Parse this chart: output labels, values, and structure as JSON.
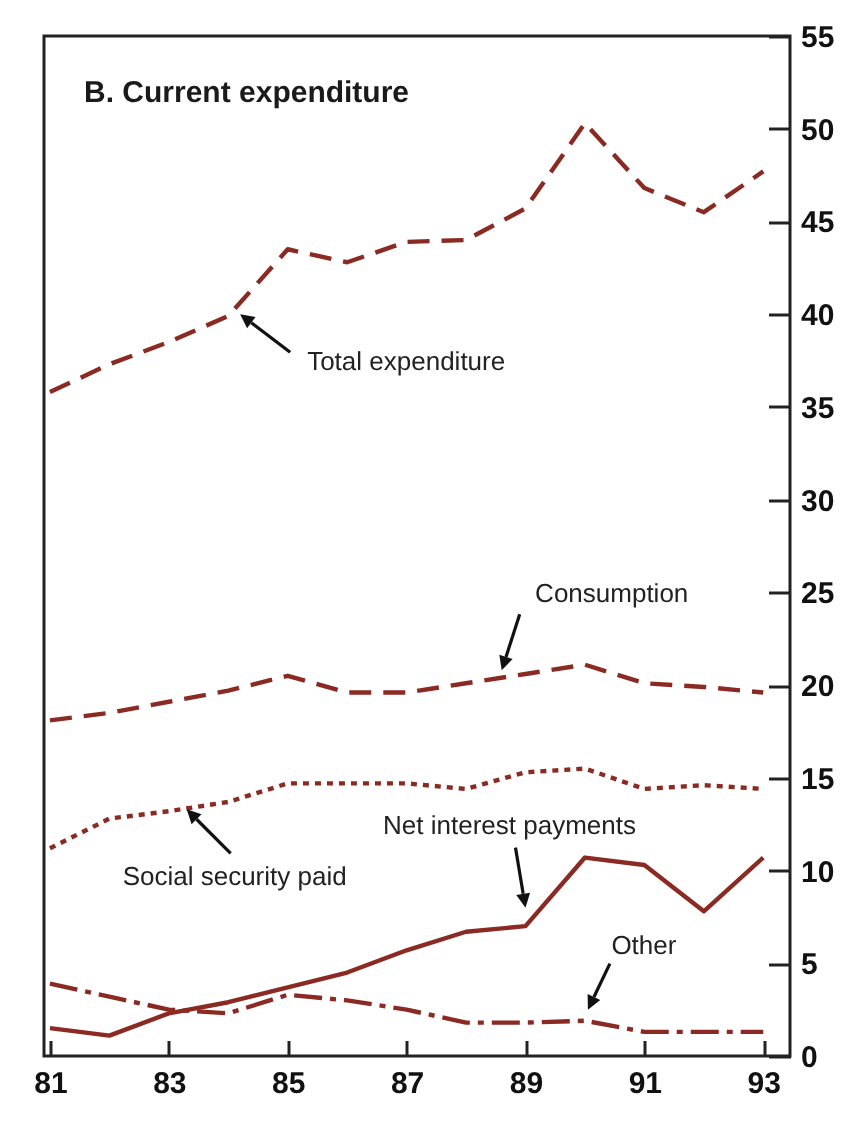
{
  "chart_data": {
    "type": "line",
    "title": "B.   Current expenditure",
    "x": [
      81,
      82,
      83,
      84,
      85,
      86,
      87,
      88,
      89,
      90,
      91,
      92,
      93
    ],
    "series": [
      {
        "color": "#8b2a22",
        "line_style": "dashed",
        "values": [
          35.8,
          37.3,
          38.5,
          39.9,
          43.5,
          42.8,
          43.9,
          44.0,
          45.7,
          50.3,
          46.8,
          45.5,
          47.7
        ]
      },
      {
        "color": "#8b2a22",
        "line_style": "dashed",
        "values": [
          18.1,
          18.5,
          19.1,
          19.7,
          20.5,
          19.6,
          19.6,
          20.1,
          20.6,
          21.1,
          20.1,
          19.9,
          19.6
        ]
      },
      {
        "color": "#8b2a22",
        "line_style": "dotted",
        "values": [
          11.2,
          12.8,
          13.2,
          13.7,
          14.7,
          14.7,
          14.7,
          14.4,
          15.3,
          15.5,
          14.4,
          14.6,
          14.4
        ]
      },
      {
        "color": "#8b2a22",
        "line_style": "solid",
        "values": [
          1.5,
          1.1,
          2.3,
          2.9,
          3.7,
          4.5,
          5.7,
          6.7,
          7.0,
          10.7,
          10.3,
          7.8,
          10.7
        ]
      },
      {
        "color": "#8b2a22",
        "line_style": "dashdot",
        "values": [
          3.9,
          3.2,
          2.5,
          2.3,
          3.3,
          3.0,
          2.5,
          1.8,
          1.8,
          1.9,
          1.3,
          1.3,
          1.3
        ]
      }
    ],
    "annotations": [
      {
        "text": "Total expenditure",
        "x": 84.2,
        "y": 40.0
      },
      {
        "text": "Consumption",
        "x": 88.6,
        "y": 20.8
      },
      {
        "text": "Social security paid",
        "x": 83.3,
        "y": 13.3
      },
      {
        "text": "Net interest payments",
        "x": 89.0,
        "y": 8.0
      },
      {
        "text": "Other",
        "x": 90.05,
        "y": 2.5
      }
    ],
    "xlim": [
      80.9,
      93.45
    ],
    "xticks": [
      81,
      83,
      85,
      87,
      89,
      91,
      93
    ],
    "ylim": [
      0,
      55
    ],
    "yticks": [
      0,
      5,
      10,
      15,
      20,
      25,
      30,
      35,
      40,
      45,
      50,
      55
    ],
    "grid": false
  }
}
